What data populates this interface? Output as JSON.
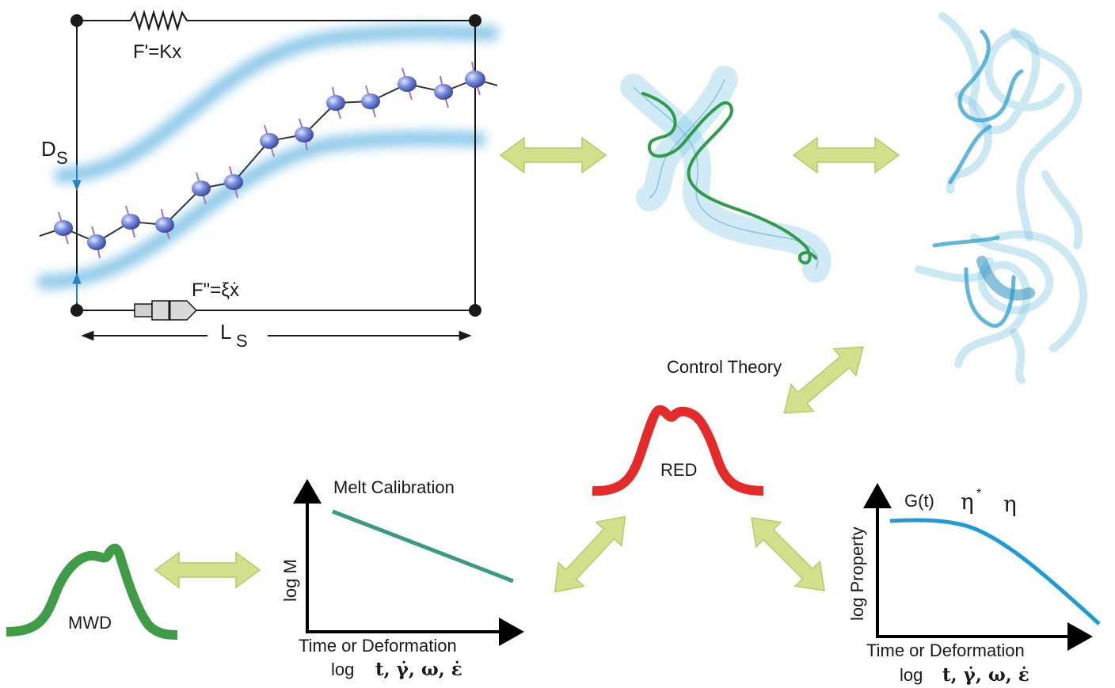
{
  "tube_model": {
    "spring_label": "F'=Kx",
    "dashpot_label": "F\"=ξẋ",
    "tube_diameter_main": "D",
    "tube_diameter_sub": "S",
    "length_main": "L",
    "length_sub": "S"
  },
  "control_theory_label": "Control Theory",
  "red_label": "RED",
  "mwd_label": "MWD",
  "melt_calibration": {
    "title": "Melt Calibration",
    "ylabel": "log M",
    "xlabel_line1": "Time or Deformation",
    "xlabel_line2_prefix": "log",
    "xlabel_line2_vars": "t, γ̇, ω, ε̇"
  },
  "property_plot": {
    "legend_1": "G(t)",
    "legend_2": "η",
    "legend_2_sup": "*",
    "legend_3": "η",
    "ylabel": "log Property",
    "xlabel_line1": "Time or Deformation",
    "xlabel_line2_prefix": "log",
    "xlabel_line2_vars": "t, γ̇, ω, ε̇"
  },
  "colors": {
    "arrow_fill": "#d2e08c",
    "arrow_stroke": "#b8c96a",
    "mwd_curve": "#3f9b45",
    "red_curve": "#e52a2a",
    "calibration_line": "#3b9a86",
    "property_curve": "#1e9bd7",
    "tube_blue": "#5fb4e0",
    "bead": "#5a6fc4"
  }
}
